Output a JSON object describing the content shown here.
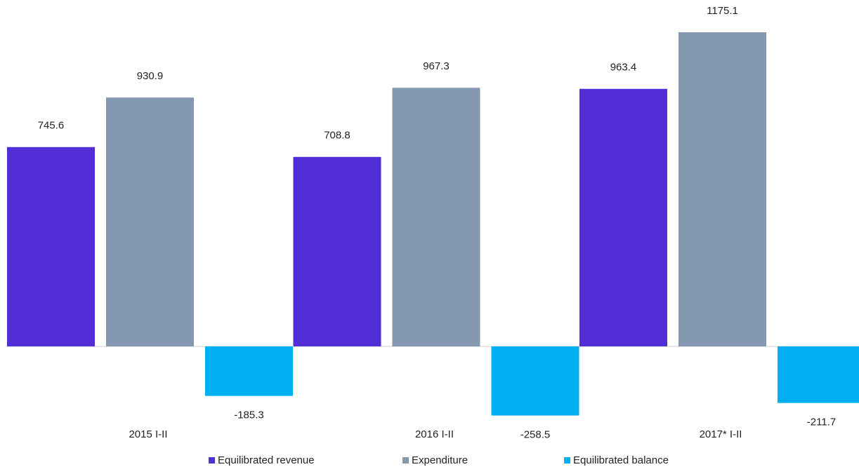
{
  "chart_data": {
    "type": "bar",
    "categories": [
      "2015 I-II",
      "2016 I-II",
      "2017* I-II"
    ],
    "series": [
      {
        "name": "Equilibrated revenue",
        "color": "#522ed6",
        "values": [
          745.6,
          708.8,
          963.4
        ]
      },
      {
        "name": "Expenditure",
        "color": "#8598b2",
        "values": [
          930.9,
          967.3,
          1175.1
        ]
      },
      {
        "name": "Equilibrated balance",
        "color": "#00b0f0",
        "values": [
          -185.3,
          -258.5,
          -211.7
        ]
      }
    ],
    "legend": "bottom"
  }
}
